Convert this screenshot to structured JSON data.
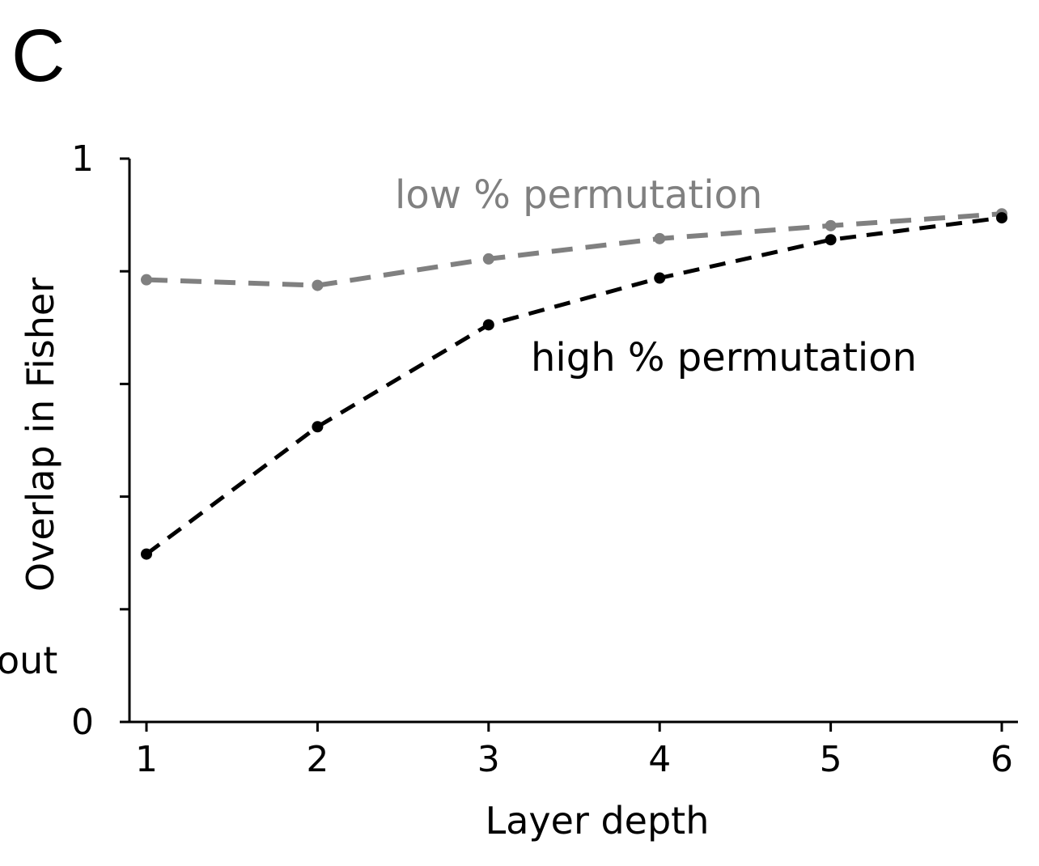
{
  "panel_letter": "C",
  "cut_text": "out",
  "colors": {
    "high": "#000000",
    "low": "#808080",
    "cut_text": "#4a6aa5",
    "axis": "#000000"
  },
  "chart_data": {
    "type": "line",
    "xlabel": "Layer depth",
    "ylabel": "Overlap in Fisher",
    "x": [
      1,
      2,
      3,
      4,
      5,
      6
    ],
    "xlim": [
      1,
      6
    ],
    "ylim": [
      0,
      1
    ],
    "xticks": [
      "1",
      "2",
      "3",
      "4",
      "5",
      "6"
    ],
    "yticks": [
      0,
      0.2,
      0.4,
      0.6,
      0.8,
      1
    ],
    "ytick_labels": [
      "0",
      "",
      "",
      "",
      "",
      "1"
    ],
    "grid": false,
    "series": [
      {
        "name": "low % permutation",
        "values": [
          0.785,
          0.775,
          0.822,
          0.858,
          0.881,
          0.902
        ],
        "color": "#808080",
        "style": "dashed"
      },
      {
        "name": "high % permutation",
        "values": [
          0.298,
          0.524,
          0.705,
          0.788,
          0.856,
          0.895
        ],
        "color": "#000000",
        "style": "dashed"
      }
    ]
  }
}
